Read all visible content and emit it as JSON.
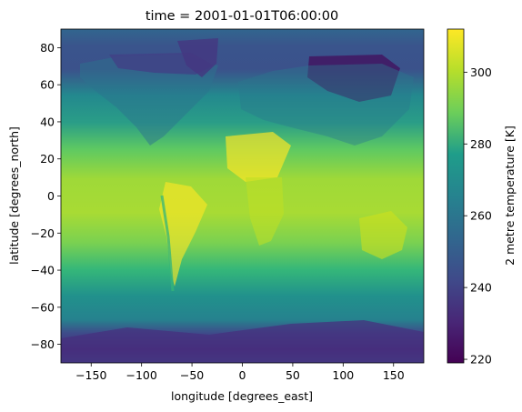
{
  "chart_data": {
    "type": "heatmap",
    "title": "time = 2001-01-01T06:00:00",
    "xlabel": "longitude [degrees_east]",
    "ylabel": "latitude [degrees_north]",
    "xlim": [
      -180,
      180
    ],
    "ylim": [
      -90,
      90
    ],
    "x_ticks": [
      -150,
      -100,
      -50,
      0,
      50,
      100,
      150
    ],
    "y_ticks": [
      -80,
      -60,
      -40,
      -20,
      0,
      20,
      40,
      60,
      80
    ],
    "grid": false,
    "colormap": "viridis",
    "colorbar": {
      "label": "2 metre temperature [K]",
      "range": [
        219,
        312
      ],
      "ticks": [
        220,
        240,
        260,
        280,
        300
      ],
      "colors": [
        "#440154",
        "#482777",
        "#3f4a8a",
        "#31678e",
        "#26838f",
        "#1f9d8a",
        "#6cce5a",
        "#b6de2b",
        "#fee825"
      ]
    },
    "variable": "2 metre temperature",
    "units": "K"
  }
}
